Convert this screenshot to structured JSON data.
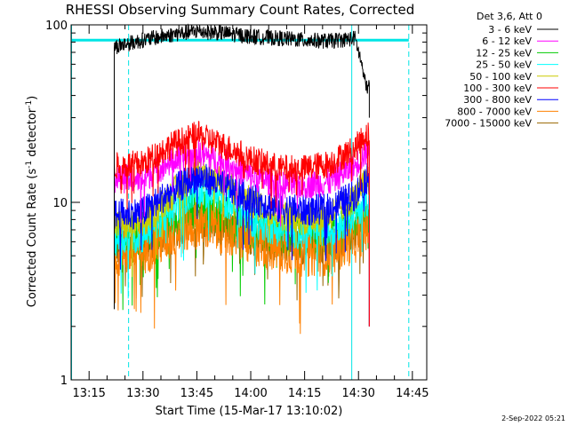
{
  "chart_data": {
    "type": "line",
    "title": "RHESSI Observing Summary Count Rates, Corrected",
    "xlabel": "Start Time (15-Mar-17 13:10:02)",
    "ylabel": "Corrected Count Rate (s",
    "ylabel_sup1": "-1",
    "ylabel_mid": " detector",
    "ylabel_sup2": "-1",
    "ylabel_end": ")",
    "y_scale": "log",
    "ylim": [
      1,
      100
    ],
    "xlim": [
      "13:10",
      "14:49"
    ],
    "yticks": [
      {
        "value": 1,
        "label": "1"
      },
      {
        "value": 10,
        "label": "10"
      },
      {
        "value": 100,
        "label": "100"
      }
    ],
    "xticks": [
      {
        "minute": 15,
        "label": "13:15"
      },
      {
        "minute": 30,
        "label": "13:30"
      },
      {
        "minute": 45,
        "label": "13:45"
      },
      {
        "minute": 60,
        "label": "14:00"
      },
      {
        "minute": 75,
        "label": "14:15"
      },
      {
        "minute": 90,
        "label": "14:30"
      },
      {
        "minute": 105,
        "label": "14:45"
      }
    ],
    "legend_title": "Det 3,6, Att 0",
    "legend_placement": "right",
    "data_start": "13:22",
    "data_end": "14:33",
    "cyan_solid_vlines": [
      "13:10",
      "14:28"
    ],
    "cyan_dashed_vlines": [
      "13:26",
      "14:44"
    ],
    "cyan_hline_value": 82,
    "series": [
      {
        "name": "3 - 6 keV",
        "color": "#000000",
        "x": [
          "13:22",
          "13:30",
          "13:38",
          "13:45",
          "13:52",
          "14:00",
          "14:08",
          "14:15",
          "14:22",
          "14:29",
          "14:32"
        ],
        "y": [
          75,
          82,
          88,
          92,
          90,
          86,
          84,
          82,
          81,
          84,
          45
        ]
      },
      {
        "name": "6 - 12 keV",
        "color": "#ff00ff",
        "x": [
          "13:22",
          "13:30",
          "13:38",
          "13:45",
          "13:52",
          "14:00",
          "14:08",
          "14:15",
          "14:22",
          "14:29",
          "14:32"
        ],
        "y": [
          13.5,
          13.5,
          17,
          19,
          17,
          14,
          12.5,
          12.5,
          13,
          16,
          19
        ]
      },
      {
        "name": "12 - 25 keV",
        "color": "#00cc00",
        "x": [
          "13:22",
          "13:30",
          "13:38",
          "13:45",
          "13:52",
          "14:00",
          "14:08",
          "14:15",
          "14:22",
          "14:29",
          "14:32"
        ],
        "y": [
          6.5,
          6.5,
          8,
          9.5,
          8.5,
          7,
          6.5,
          6.5,
          6.5,
          7.5,
          8.5
        ]
      },
      {
        "name": "25 - 50 keV",
        "color": "#00ffff",
        "x": [
          "13:22",
          "13:30",
          "13:38",
          "13:45",
          "13:52",
          "14:00",
          "14:08",
          "14:15",
          "14:22",
          "14:29",
          "14:32"
        ],
        "y": [
          6.2,
          6.5,
          9,
          12,
          10.5,
          8,
          7,
          6.8,
          7,
          8.5,
          10.5
        ]
      },
      {
        "name": "50 - 100 keV",
        "color": "#cccc00",
        "x": [
          "13:22",
          "13:30",
          "13:38",
          "13:45",
          "13:52",
          "14:00",
          "14:08",
          "14:15",
          "14:22",
          "14:29",
          "14:32"
        ],
        "y": [
          7.5,
          7.5,
          11,
          15,
          13,
          10,
          8.5,
          8,
          8.5,
          10.5,
          13
        ]
      },
      {
        "name": "100 - 300 keV",
        "color": "#ff0000",
        "x": [
          "13:22",
          "13:30",
          "13:38",
          "13:45",
          "13:52",
          "14:00",
          "14:08",
          "14:15",
          "14:22",
          "14:29",
          "14:32"
        ],
        "y": [
          16,
          16.5,
          21,
          24,
          21,
          17.5,
          15.5,
          15.5,
          16.5,
          20,
          24
        ]
      },
      {
        "name": "300 - 800 keV",
        "color": "#0000ff",
        "x": [
          "13:22",
          "13:30",
          "13:38",
          "13:45",
          "13:52",
          "14:00",
          "14:08",
          "14:15",
          "14:22",
          "14:29",
          "14:32"
        ],
        "y": [
          8.5,
          8.8,
          11.5,
          14,
          12.5,
          10.5,
          9.2,
          9,
          9.2,
          11,
          13.5
        ]
      },
      {
        "name": "800 - 7000 keV",
        "color": "#ff8000",
        "x": [
          "13:22",
          "13:30",
          "13:38",
          "13:45",
          "13:52",
          "14:00",
          "14:08",
          "14:15",
          "14:22",
          "14:29",
          "14:32"
        ],
        "y": [
          5.2,
          5.3,
          6.5,
          7.5,
          7,
          6,
          5.5,
          5.2,
          5.3,
          6.2,
          7.2
        ]
      },
      {
        "name": "7000 - 15000 keV",
        "color": "#996600",
        "x": [
          "13:22",
          "13:30",
          "13:38",
          "13:45",
          "13:52",
          "14:00",
          "14:08",
          "14:15",
          "14:22",
          "14:29",
          "14:32"
        ],
        "y": [
          5.5,
          5.6,
          6.8,
          8,
          7.3,
          6.3,
          5.8,
          5.6,
          5.7,
          6.6,
          7.6
        ]
      }
    ],
    "footer_stamp": "2-Sep-2022 05:21"
  }
}
